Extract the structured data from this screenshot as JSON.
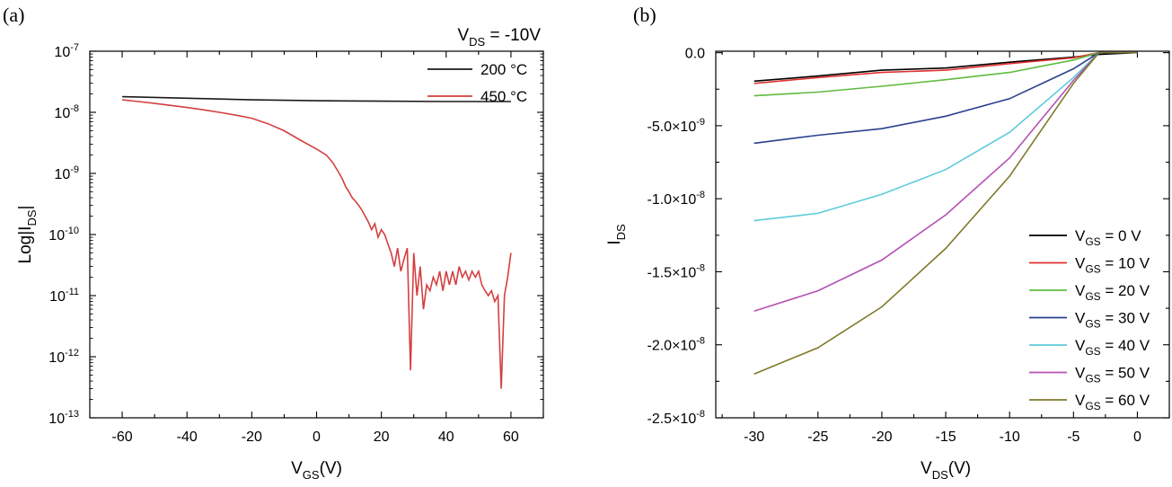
{
  "panels": [
    {
      "label": "(a)"
    },
    {
      "label": "(b)"
    }
  ],
  "chart_data": [
    {
      "type": "line",
      "panel": "(a)",
      "annotation": {
        "prefix": "V",
        "sub": "DS",
        "suffix": " = -10V"
      },
      "xlabel": {
        "prefix": "V",
        "sub": "GS",
        "suffix": "(V)"
      },
      "ylabel": {
        "prefix": "Log|I",
        "sub": "DS",
        "suffix": "|"
      },
      "xlim": [
        -70,
        70
      ],
      "ylim": [
        -13,
        -7
      ],
      "y_scale": "log",
      "xticks": [
        -60,
        -40,
        -20,
        0,
        20,
        40,
        60
      ],
      "yticks": [
        {
          "value": -7,
          "base": "10",
          "exp": "-7"
        },
        {
          "value": -8,
          "base": "10",
          "exp": "-8"
        },
        {
          "value": -9,
          "base": "10",
          "exp": "-9"
        },
        {
          "value": -10,
          "base": "10",
          "exp": "-10"
        },
        {
          "value": -11,
          "base": "10",
          "exp": "-11"
        },
        {
          "value": -12,
          "base": "10",
          "exp": "-12"
        },
        {
          "value": -13,
          "base": "10",
          "exp": "-13"
        }
      ],
      "legend_position": "top-right",
      "series": [
        {
          "name": "200 °C",
          "color": "#1a1a1a",
          "x": [
            -60,
            -40,
            -20,
            0,
            20,
            40,
            60
          ],
          "y": [
            1.8e-08,
            1.7e-08,
            1.6e-08,
            1.55e-08,
            1.52e-08,
            1.5e-08,
            1.5e-08
          ]
        },
        {
          "name": "450 °C",
          "color": "#d43f3f",
          "x": [
            -60,
            -55,
            -50,
            -45,
            -40,
            -35,
            -30,
            -25,
            -20,
            -15,
            -10,
            -5,
            0,
            3,
            5,
            7,
            8,
            9,
            10,
            11,
            12,
            13,
            14,
            15,
            16,
            17,
            18,
            19,
            20,
            21,
            22,
            23,
            24,
            25,
            26,
            27,
            28,
            29,
            30,
            31,
            32,
            33,
            34,
            35,
            36,
            37,
            38,
            39,
            40,
            41,
            42,
            43,
            44,
            45,
            46,
            47,
            48,
            49,
            50,
            51,
            52,
            53,
            54,
            55,
            56,
            57,
            58,
            59,
            60
          ],
          "y": [
            1.6e-08,
            1.5e-08,
            1.4e-08,
            1.3e-08,
            1.2e-08,
            1.1e-08,
            1e-08,
            9e-09,
            8e-09,
            6.5e-09,
            5e-09,
            3.5e-09,
            2.5e-09,
            2e-09,
            1.5e-09,
            1e-09,
            8e-10,
            6e-10,
            5e-10,
            4e-10,
            3.5e-10,
            3e-10,
            2.5e-10,
            2e-10,
            1.6e-10,
            1.2e-10,
            1.5e-10,
            9e-11,
            1.2e-10,
            1e-10,
            7e-11,
            5e-11,
            3e-11,
            6e-11,
            2.5e-11,
            4e-11,
            6e-11,
            6e-13,
            5e-11,
            1e-11,
            3e-11,
            6e-12,
            1.5e-11,
            1.2e-11,
            2e-11,
            1.5e-11,
            2.5e-11,
            1.2e-11,
            2.5e-11,
            1.5e-11,
            2.5e-11,
            1.5e-11,
            3e-11,
            2e-11,
            2.5e-11,
            1.8e-11,
            2.5e-11,
            2e-11,
            2.5e-11,
            1.5e-11,
            1.2e-11,
            1e-11,
            1.2e-11,
            8e-12,
            1e-11,
            3e-13,
            1e-11,
            2e-11,
            5e-11
          ]
        }
      ]
    },
    {
      "type": "line",
      "panel": "(b)",
      "xlabel": {
        "prefix": "V",
        "sub": "DS",
        "suffix": "(V)"
      },
      "ylabel": {
        "prefix": "I",
        "sub": "DS",
        "suffix": ""
      },
      "xlim": [
        -33,
        2.5
      ],
      "ylim": [
        -2.5e-08,
        1e-10
      ],
      "xticks": [
        -30,
        -25,
        -20,
        -15,
        -10,
        -5,
        0
      ],
      "yticks": [
        {
          "value": 0,
          "mant": "0.0",
          "exp": ""
        },
        {
          "value": -5e-09,
          "mant": "-5.0×10",
          "exp": "-9"
        },
        {
          "value": -1e-08,
          "mant": "-1.0×10",
          "exp": "-8"
        },
        {
          "value": -1.5e-08,
          "mant": "-1.5×10",
          "exp": "-8"
        },
        {
          "value": -2e-08,
          "mant": "-2.0×10",
          "exp": "-8"
        },
        {
          "value": -2.5e-08,
          "mant": "-2.5×10",
          "exp": "-8"
        }
      ],
      "legend_position": "bottom-right",
      "x": [
        -30,
        -25,
        -20,
        -15,
        -10,
        -5,
        -3,
        0
      ],
      "series": [
        {
          "name": "VGS = 0 V",
          "legend": {
            "prefix": "V",
            "sub": "GS",
            "suffix": " = 0 V"
          },
          "color": "#000000",
          "y": [
            -1.95e-09,
            -1.6e-09,
            -1.2e-09,
            -1.05e-09,
            -6.5e-10,
            -3e-10,
            -1.2e-10,
            0
          ]
        },
        {
          "name": "VGS = 10 V",
          "legend": {
            "prefix": "V",
            "sub": "GS",
            "suffix": " = 10 V"
          },
          "color": "#e03030",
          "y": [
            -2.1e-09,
            -1.7e-09,
            -1.35e-09,
            -1.2e-09,
            -7.5e-10,
            -3.5e-10,
            0,
            0
          ]
        },
        {
          "name": "VGS = 20 V",
          "legend": {
            "prefix": "V",
            "sub": "GS",
            "suffix": " = 20 V"
          },
          "color": "#5fbb3f",
          "y": [
            -2.95e-09,
            -2.7e-09,
            -2.3e-09,
            -1.85e-09,
            -1.35e-09,
            -5e-10,
            0,
            0
          ]
        },
        {
          "name": "VGS = 30 V",
          "legend": {
            "prefix": "V",
            "sub": "GS",
            "suffix": " = 30 V"
          },
          "color": "#2a3f8f",
          "y": [
            -6.2e-09,
            -5.65e-09,
            -5.2e-09,
            -4.35e-09,
            -3.15e-09,
            -1.1e-09,
            0,
            0
          ]
        },
        {
          "name": "VGS = 40 V",
          "legend": {
            "prefix": "V",
            "sub": "GS",
            "suffix": " = 40 V"
          },
          "color": "#5ecbdb",
          "y": [
            -1.15e-08,
            -1.1e-08,
            -9.7e-09,
            -8e-09,
            -5.45e-09,
            -1.7e-09,
            0,
            0
          ]
        },
        {
          "name": "VGS = 50 V",
          "legend": {
            "prefix": "V",
            "sub": "GS",
            "suffix": " = 50 V"
          },
          "color": "#b450b4",
          "y": [
            -1.77e-08,
            -1.63e-08,
            -1.42e-08,
            -1.11e-08,
            -7.2e-09,
            -1.9e-09,
            0,
            0
          ]
        },
        {
          "name": "VGS = 60 V",
          "legend": {
            "prefix": "V",
            "sub": "GS",
            "suffix": " = 60 V"
          },
          "color": "#7f7a2a",
          "y": [
            -2.2e-08,
            -2.02e-08,
            -1.74e-08,
            -1.34e-08,
            -8.45e-09,
            -2.1e-09,
            0,
            0
          ]
        }
      ]
    }
  ]
}
